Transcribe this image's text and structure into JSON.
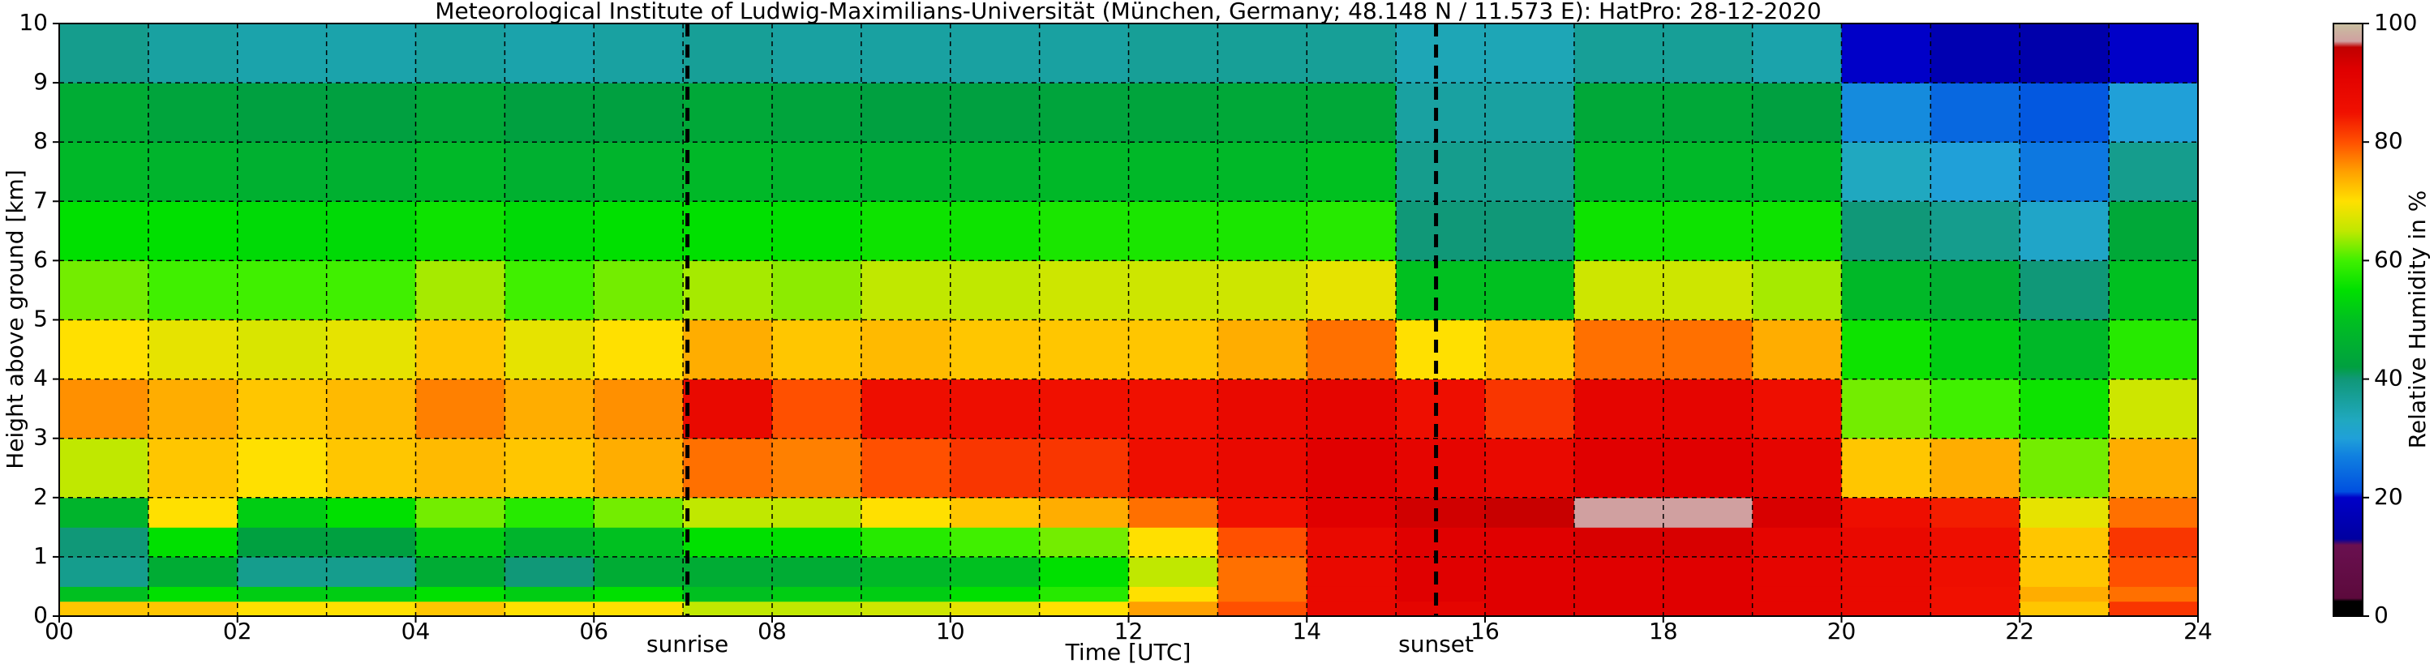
{
  "chart_data": {
    "type": "heatmap",
    "title": "Meteorological Institute of Ludwig-Maximilians-Universität (München, Germany; 48.148 N / 11.573 E):    HatPro: 28-12-2020",
    "x_label": "Time [UTC]",
    "y_label": "Height above ground [km]",
    "colorbar_label": "Relative Humidity in %",
    "x_edges": [
      0,
      1,
      2,
      3,
      4,
      5,
      6,
      7,
      8,
      9,
      10,
      11,
      12,
      13,
      14,
      15,
      16,
      17,
      18,
      19,
      20,
      21,
      22,
      23,
      24
    ],
    "y_edges": [
      0,
      0.25,
      0.5,
      1,
      1.5,
      2,
      3,
      4,
      5,
      6,
      7,
      8,
      9,
      10
    ],
    "values": [
      [
        72,
        50,
        38,
        40,
        47,
        65,
        76,
        70,
        62,
        55,
        48,
        45,
        38
      ],
      [
        72,
        55,
        45,
        55,
        70,
        72,
        74,
        68,
        60,
        55,
        47,
        43,
        36
      ],
      [
        70,
        52,
        38,
        42,
        52,
        70,
        72,
        67,
        60,
        54,
        46,
        42,
        35
      ],
      [
        70,
        52,
        38,
        42,
        55,
        72,
        73,
        68,
        60,
        54,
        46,
        42,
        35
      ],
      [
        72,
        55,
        45,
        52,
        62,
        73,
        77,
        72,
        64,
        56,
        48,
        44,
        36
      ],
      [
        70,
        52,
        40,
        47,
        58,
        72,
        74,
        68,
        60,
        54,
        46,
        42,
        35
      ],
      [
        70,
        55,
        45,
        50,
        62,
        74,
        76,
        70,
        62,
        55,
        47,
        42,
        36
      ],
      [
        65,
        50,
        45,
        55,
        65,
        78,
        88,
        74,
        64,
        55,
        48,
        44,
        37
      ],
      [
        65,
        52,
        45,
        55,
        65,
        77,
        80,
        72,
        63,
        55,
        47,
        43,
        36
      ],
      [
        66,
        52,
        48,
        58,
        70,
        80,
        86,
        73,
        65,
        56,
        47,
        42,
        36
      ],
      [
        68,
        55,
        50,
        60,
        72,
        82,
        86,
        72,
        65,
        56,
        47,
        42,
        36
      ],
      [
        70,
        58,
        55,
        62,
        74,
        82,
        85,
        72,
        66,
        57,
        48,
        43,
        36
      ],
      [
        75,
        70,
        65,
        70,
        78,
        86,
        85,
        72,
        66,
        57,
        48,
        43,
        37
      ],
      [
        80,
        78,
        78,
        80,
        85,
        88,
        88,
        74,
        66,
        57,
        48,
        44,
        37
      ],
      [
        88,
        88,
        88,
        88,
        92,
        92,
        90,
        78,
        68,
        58,
        50,
        44,
        37
      ],
      [
        90,
        92,
        92,
        92,
        94,
        90,
        86,
        70,
        50,
        40,
        38,
        36,
        34
      ],
      [
        92,
        92,
        92,
        92,
        95,
        88,
        82,
        72,
        50,
        40,
        38,
        36,
        34
      ],
      [
        92,
        92,
        92,
        93,
        97,
        92,
        90,
        78,
        66,
        56,
        48,
        44,
        37
      ],
      [
        92,
        92,
        92,
        93,
        97,
        92,
        90,
        78,
        66,
        56,
        48,
        44,
        37
      ],
      [
        90,
        90,
        90,
        90,
        93,
        90,
        86,
        74,
        64,
        56,
        48,
        42,
        35
      ],
      [
        88,
        88,
        88,
        88,
        86,
        72,
        62,
        56,
        48,
        40,
        33,
        28,
        20
      ],
      [
        85,
        85,
        86,
        86,
        84,
        74,
        60,
        52,
        46,
        38,
        30,
        24,
        16
      ],
      [
        72,
        74,
        72,
        72,
        68,
        62,
        56,
        48,
        40,
        32,
        26,
        22,
        15
      ],
      [
        82,
        78,
        80,
        82,
        78,
        74,
        66,
        58,
        50,
        44,
        38,
        30,
        20
      ]
    ],
    "xlim": [
      0,
      24
    ],
    "ylim": [
      0,
      10
    ],
    "xticks": [
      {
        "value": 0,
        "label": "00"
      },
      {
        "value": 2,
        "label": "02"
      },
      {
        "value": 4,
        "label": "04"
      },
      {
        "value": 6,
        "label": "06"
      },
      {
        "value": 8,
        "label": "08"
      },
      {
        "value": 10,
        "label": "10"
      },
      {
        "value": 12,
        "label": "12"
      },
      {
        "value": 14,
        "label": "14"
      },
      {
        "value": 16,
        "label": "16"
      },
      {
        "value": 18,
        "label": "18"
      },
      {
        "value": 20,
        "label": "20"
      },
      {
        "value": 22,
        "label": "22"
      },
      {
        "value": 24,
        "label": "24"
      }
    ],
    "x_minor_grid": [
      1,
      3,
      5,
      7,
      9,
      11,
      13,
      15,
      17,
      19,
      21,
      23
    ],
    "yticks": [
      0,
      1,
      2,
      3,
      4,
      5,
      6,
      7,
      8,
      9,
      10
    ],
    "grid": true,
    "markers": [
      {
        "x": 7.05,
        "label": "sunrise"
      },
      {
        "x": 15.45,
        "label": "sunset"
      }
    ],
    "clim": [
      0,
      100
    ],
    "colorbar_ticks": [
      0,
      20,
      40,
      60,
      80,
      100
    ],
    "colormap": [
      {
        "value": 0,
        "color": "#000000"
      },
      {
        "value": 2.5,
        "color": "#000000"
      },
      {
        "value": 3,
        "color": "#5c0a3c"
      },
      {
        "value": 12,
        "color": "#6a1050"
      },
      {
        "value": 13,
        "color": "#0000a0"
      },
      {
        "value": 20,
        "color": "#0000c8"
      },
      {
        "value": 21,
        "color": "#0050e0"
      },
      {
        "value": 27,
        "color": "#1080e0"
      },
      {
        "value": 30,
        "color": "#20a0d8"
      },
      {
        "value": 33,
        "color": "#20a8c0"
      },
      {
        "value": 40,
        "color": "#109878"
      },
      {
        "value": 42,
        "color": "#00a040"
      },
      {
        "value": 50,
        "color": "#00c020"
      },
      {
        "value": 55,
        "color": "#00e000"
      },
      {
        "value": 60,
        "color": "#40f000"
      },
      {
        "value": 65,
        "color": "#c0e800"
      },
      {
        "value": 70,
        "color": "#ffe000"
      },
      {
        "value": 75,
        "color": "#ffa000"
      },
      {
        "value": 80,
        "color": "#ff5000"
      },
      {
        "value": 85,
        "color": "#f01000"
      },
      {
        "value": 92,
        "color": "#e00000"
      },
      {
        "value": 96,
        "color": "#c00000"
      },
      {
        "value": 97,
        "color": "#d0a0a0"
      },
      {
        "value": 100,
        "color": "#c8c0a0"
      }
    ]
  }
}
